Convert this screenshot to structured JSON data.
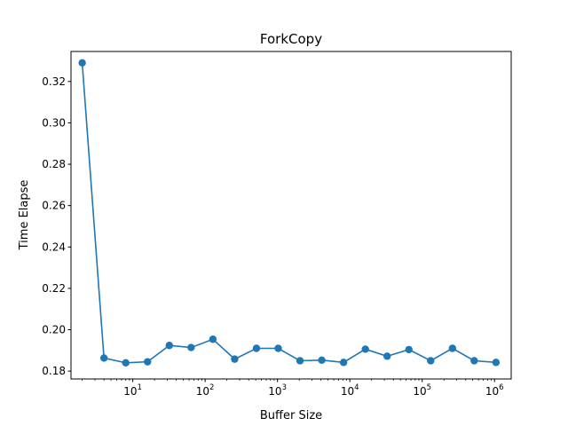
{
  "chart_data": {
    "type": "line",
    "title": "ForkCopy",
    "xlabel": "Buffer Size",
    "ylabel": "Time Elapse",
    "xscale": "log",
    "grid": false,
    "legend": "none",
    "xlim": [
      1.4,
      1700000
    ],
    "ylim": [
      0.1762,
      0.3345
    ],
    "x_ticks": [
      {
        "value": 10,
        "base": "10",
        "exp": "1"
      },
      {
        "value": 100,
        "base": "10",
        "exp": "2"
      },
      {
        "value": 1000,
        "base": "10",
        "exp": "3"
      },
      {
        "value": 10000,
        "base": "10",
        "exp": "4"
      },
      {
        "value": 100000,
        "base": "10",
        "exp": "5"
      },
      {
        "value": 1000000,
        "base": "10",
        "exp": "6"
      }
    ],
    "y_ticks": [
      {
        "value": 0.18,
        "label": "0.18"
      },
      {
        "value": 0.2,
        "label": "0.20"
      },
      {
        "value": 0.22,
        "label": "0.22"
      },
      {
        "value": 0.24,
        "label": "0.24"
      },
      {
        "value": 0.26,
        "label": "0.26"
      },
      {
        "value": 0.28,
        "label": "0.28"
      },
      {
        "value": 0.3,
        "label": "0.30"
      },
      {
        "value": 0.32,
        "label": "0.32"
      }
    ],
    "series": [
      {
        "color": "#1f77b4",
        "marker": "circle",
        "x": [
          2,
          4,
          8,
          16,
          32,
          64,
          128,
          256,
          512,
          1024,
          2048,
          4096,
          8192,
          16384,
          32768,
          65536,
          131072,
          262144,
          524288,
          1048576
        ],
        "y": [
          0.329,
          0.1863,
          0.184,
          0.1845,
          0.1924,
          0.1914,
          0.1954,
          0.1858,
          0.191,
          0.191,
          0.185,
          0.1853,
          0.1842,
          0.1906,
          0.1872,
          0.1904,
          0.185,
          0.191,
          0.185,
          0.1842
        ]
      }
    ]
  }
}
